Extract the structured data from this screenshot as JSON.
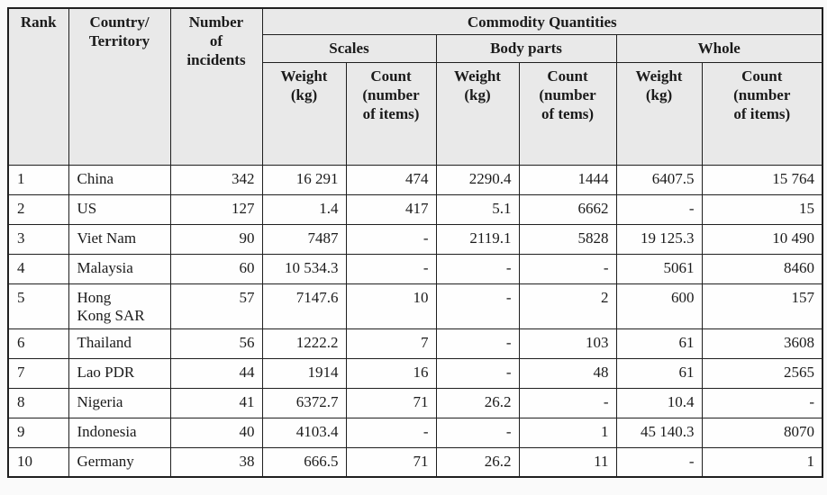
{
  "colors": {
    "header_bg": "#e9e9e9",
    "border": "#1f1f1f",
    "text": "#1b1b1b",
    "page_bg": "#fafafa",
    "cell_bg": "#fefefe"
  },
  "table": {
    "headers": {
      "rank": "Rank",
      "country": "Country/\nTerritory",
      "incidents": "Number\nof\nincidents",
      "commodity": "Commodity Quantities",
      "scales": "Scales",
      "body_parts": "Body parts",
      "whole": "Whole",
      "scales_weight": "Weight\n(kg)",
      "scales_count": "Count\n(number\nof items)",
      "body_weight": "Weight\n(kg)",
      "body_count": "Count\n(number\nof tems)",
      "whole_weight": "Weight\n(kg)",
      "whole_count": "Count\n(number\nof items)"
    },
    "rows": [
      {
        "cells": [
          "1",
          "China",
          "342",
          "16 291",
          "474",
          "2290.4",
          "1444",
          "6407.5",
          "15 764"
        ]
      },
      {
        "cells": [
          "2",
          "US",
          "127",
          "1.4",
          "417",
          "5.1",
          "6662",
          "-",
          "15"
        ]
      },
      {
        "cells": [
          "3",
          "Viet Nam",
          "90",
          "7487",
          "-",
          "2119.1",
          "5828",
          "19 125.3",
          "10 490"
        ]
      },
      {
        "cells": [
          "4",
          "Malaysia",
          "60",
          "10 534.3",
          "-",
          "-",
          "-",
          "5061",
          "8460"
        ]
      },
      {
        "cells": [
          "5",
          "Hong\nKong SAR",
          "57",
          "7147.6",
          "10",
          "-",
          "2",
          "600",
          "157"
        ]
      },
      {
        "cells": [
          "6",
          "Thailand",
          "56",
          "1222.2",
          "7",
          "-",
          "103",
          "61",
          "3608"
        ]
      },
      {
        "cells": [
          "7",
          "Lao PDR",
          "44",
          "1914",
          "16",
          "-",
          "48",
          "61",
          "2565"
        ]
      },
      {
        "cells": [
          "8",
          "Nigeria",
          "41",
          "6372.7",
          "71",
          "26.2",
          "-",
          "10.4",
          "-"
        ]
      },
      {
        "cells": [
          "9",
          "Indonesia",
          "40",
          "4103.4",
          "-",
          "-",
          "1",
          "45 140.3",
          "8070"
        ]
      },
      {
        "cells": [
          "10",
          "Germany",
          "38",
          "666.5",
          "71",
          "26.2",
          "11",
          "-",
          "1"
        ]
      }
    ]
  }
}
